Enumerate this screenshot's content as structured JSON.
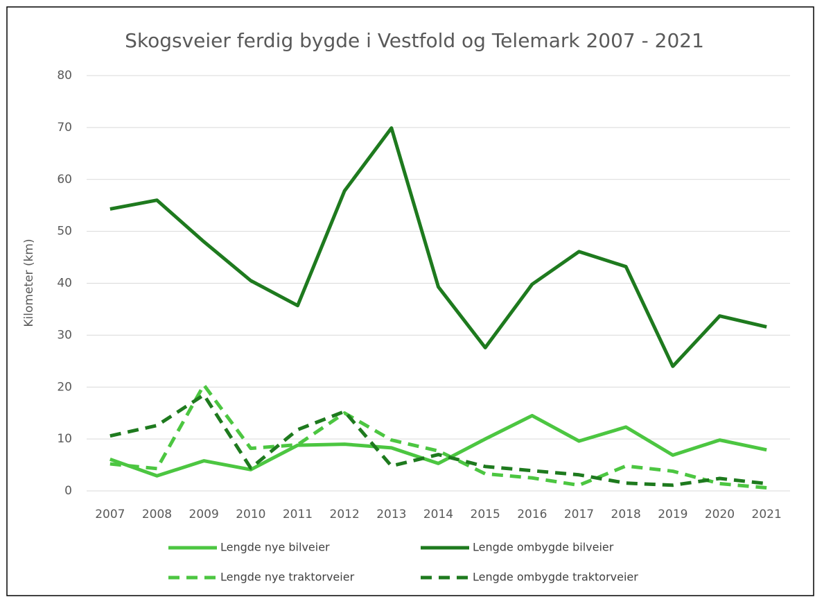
{
  "chart_data": {
    "type": "line",
    "title": "Skogsveier ferdig bygde i Vestfold og Telemark 2007 - 2021",
    "y_label": "Kilometer (km)",
    "categories": [
      "2007",
      "2008",
      "2009",
      "2010",
      "2011",
      "2012",
      "2013",
      "2014",
      "2015",
      "2016",
      "2017",
      "2018",
      "2019",
      "2020",
      "2021"
    ],
    "ylim": [
      0,
      80
    ],
    "yticks": [
      0,
      10,
      20,
      30,
      40,
      50,
      60,
      70,
      80
    ],
    "grid": true,
    "legend": "bottom",
    "series": [
      {
        "name": "Lengde nye bilveier",
        "color": "#4cc641",
        "dash": false,
        "values": [
          6.1,
          2.9,
          5.8,
          4.1,
          8.8,
          9.0,
          8.3,
          5.3,
          10.0,
          14.5,
          9.6,
          12.3,
          6.9,
          9.8,
          7.9
        ]
      },
      {
        "name": "Lengde ombygde bilveier",
        "color": "#1e7a1e",
        "dash": false,
        "values": [
          54.3,
          56.0,
          48.0,
          40.5,
          35.7,
          57.8,
          69.9,
          39.3,
          27.6,
          39.8,
          46.1,
          43.2,
          24.0,
          33.7,
          31.6
        ]
      },
      {
        "name": "Lengde nye traktorveier",
        "color": "#4cc641",
        "dash": true,
        "values": [
          5.2,
          4.3,
          20.4,
          8.2,
          8.9,
          15.0,
          9.8,
          7.7,
          3.3,
          2.5,
          1.1,
          4.8,
          3.8,
          1.4,
          0.6
        ]
      },
      {
        "name": "Lengde ombygde traktorveier",
        "color": "#1e7a1e",
        "dash": true,
        "values": [
          10.6,
          12.6,
          18.5,
          4.4,
          11.8,
          15.3,
          4.8,
          7.0,
          4.7,
          3.9,
          3.1,
          1.5,
          1.1,
          2.4,
          1.4
        ]
      }
    ]
  }
}
